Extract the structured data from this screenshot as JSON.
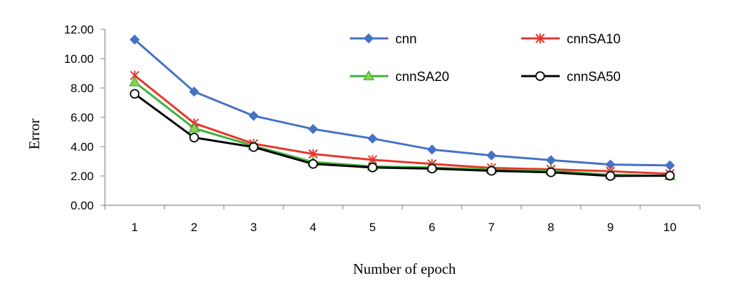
{
  "chart_data": {
    "type": "line",
    "title": "",
    "xlabel": "Number of epoch",
    "ylabel": "Error",
    "x": [
      1,
      2,
      3,
      4,
      5,
      6,
      7,
      8,
      9,
      10
    ],
    "ylim": [
      0,
      12
    ],
    "yticks": [
      "0.00",
      "2.00",
      "4.00",
      "6.00",
      "8.00",
      "10.00",
      "12.00"
    ],
    "grid": false,
    "legend_position": "top-right",
    "series": [
      {
        "name": "cnn",
        "color": "#4472c4",
        "marker": "diamond",
        "values": [
          11.3,
          7.75,
          6.1,
          5.2,
          4.55,
          3.8,
          3.4,
          3.08,
          2.78,
          2.72
        ]
      },
      {
        "name": "cnnSA10",
        "color": "#e8352a",
        "marker": "asterisk",
        "values": [
          8.85,
          5.6,
          4.2,
          3.5,
          3.1,
          2.82,
          2.55,
          2.45,
          2.32,
          2.15
        ]
      },
      {
        "name": "cnnSA20",
        "color": "#3bb33b",
        "marker": "triangle",
        "values": [
          8.4,
          5.25,
          4.05,
          2.95,
          2.65,
          2.58,
          2.43,
          2.35,
          2.08,
          2.0
        ]
      },
      {
        "name": "cnnSA50",
        "color": "#000000",
        "marker": "circle",
        "values": [
          7.6,
          4.62,
          3.97,
          2.82,
          2.58,
          2.5,
          2.35,
          2.25,
          2.0,
          2.02
        ]
      }
    ]
  }
}
